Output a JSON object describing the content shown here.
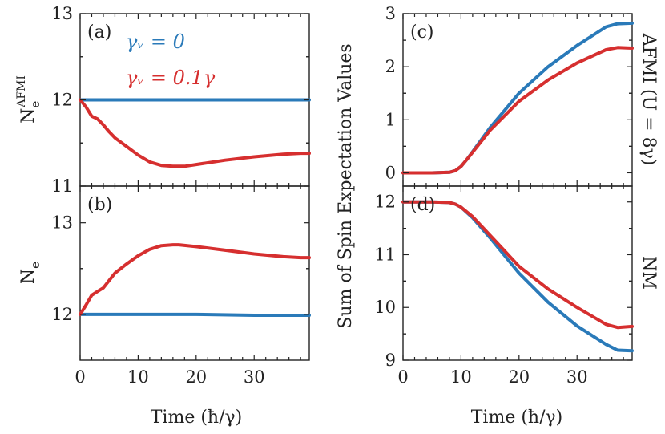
{
  "colors": {
    "blue": "#2a7ab9",
    "red": "#d62f2f"
  },
  "legend": {
    "blue_label": "γᵥ = 0",
    "red_label": "γᵥ = 0.1γ"
  },
  "shared": {
    "xlabel": "Time (ħ/γ)",
    "ylabel_right": "Sum of Spin Expectation Values"
  },
  "chart_data": [
    {
      "type": "line",
      "panel": "(a)",
      "ylabel": "N_e^AFMI",
      "xlim": [
        0,
        39.5
      ],
      "ylim": [
        11,
        13
      ],
      "xticks": [
        0,
        10,
        20,
        30
      ],
      "yticks": [
        11,
        12,
        13
      ],
      "series": [
        {
          "name": "γv = 0",
          "color": "blue",
          "x": [
            0,
            10,
            20,
            30,
            39.5
          ],
          "y": [
            12.0,
            12.0,
            12.0,
            12.0,
            12.0
          ]
        },
        {
          "name": "γv = 0.1γ",
          "color": "red",
          "x": [
            0,
            1,
            2,
            3,
            4,
            5,
            6,
            8,
            10,
            12,
            14,
            16,
            18,
            20,
            25,
            30,
            35,
            38,
            39.5
          ],
          "y": [
            12.0,
            11.92,
            11.81,
            11.78,
            11.71,
            11.63,
            11.56,
            11.46,
            11.36,
            11.28,
            11.24,
            11.23,
            11.23,
            11.25,
            11.3,
            11.34,
            11.37,
            11.38,
            11.38
          ]
        }
      ]
    },
    {
      "type": "line",
      "panel": "(b)",
      "ylabel": "N_e",
      "xlim": [
        0,
        39.5
      ],
      "ylim": [
        11.5,
        13.4
      ],
      "xticks": [
        0,
        10,
        20,
        30
      ],
      "xticklabels": [
        "0",
        "10",
        "20",
        "30"
      ],
      "yticks": [
        12,
        13
      ],
      "xlabel": "Time (ħ/γ)",
      "series": [
        {
          "name": "γv = 0",
          "color": "blue",
          "x": [
            0,
            10,
            20,
            30,
            39.5
          ],
          "y": [
            12.0,
            12.0,
            12.0,
            11.99,
            11.99
          ]
        },
        {
          "name": "γv = 0.1γ",
          "color": "red",
          "x": [
            0,
            1,
            2,
            3,
            4,
            5,
            6,
            8,
            10,
            12,
            14,
            16,
            17,
            20,
            25,
            30,
            35,
            38,
            39.5
          ],
          "y": [
            12.0,
            12.1,
            12.21,
            12.25,
            12.29,
            12.37,
            12.45,
            12.55,
            12.64,
            12.71,
            12.75,
            12.76,
            12.76,
            12.74,
            12.7,
            12.66,
            12.63,
            12.62,
            12.62
          ]
        }
      ]
    },
    {
      "type": "line",
      "panel": "(c)",
      "ylabel_right": "AFMI (U = 8γ)",
      "xlim": [
        0,
        39.5
      ],
      "ylim": [
        -0.25,
        3
      ],
      "xticks": [
        0,
        10,
        20,
        30
      ],
      "yticks": [
        0,
        1,
        2,
        3
      ],
      "series": [
        {
          "name": "γv = 0",
          "color": "blue",
          "x": [
            0,
            5,
            8,
            9,
            10,
            11,
            12,
            15,
            20,
            25,
            30,
            35,
            37,
            39.5
          ],
          "y": [
            0.0,
            0.0,
            0.01,
            0.04,
            0.12,
            0.25,
            0.4,
            0.85,
            1.5,
            2.0,
            2.4,
            2.75,
            2.81,
            2.82
          ]
        },
        {
          "name": "γv = 0.1γ",
          "color": "red",
          "x": [
            0,
            5,
            8,
            9,
            10,
            11,
            12,
            15,
            20,
            25,
            30,
            35,
            37,
            39.5
          ],
          "y": [
            0.0,
            0.0,
            0.01,
            0.04,
            0.12,
            0.25,
            0.39,
            0.8,
            1.35,
            1.75,
            2.07,
            2.32,
            2.36,
            2.35
          ]
        }
      ]
    },
    {
      "type": "line",
      "panel": "(d)",
      "ylabel_right": "NM",
      "xlim": [
        0,
        39.5
      ],
      "ylim": [
        9,
        12.3
      ],
      "xticks": [
        0,
        10,
        20,
        30
      ],
      "xticklabels": [
        "0",
        "10",
        "20",
        "30"
      ],
      "yticks": [
        9,
        10,
        11,
        12
      ],
      "xlabel": "Time (ħ/γ)",
      "series": [
        {
          "name": "γv = 0",
          "color": "blue",
          "x": [
            0,
            5,
            8,
            9,
            10,
            12,
            15,
            20,
            25,
            30,
            35,
            37,
            39.5
          ],
          "y": [
            12.0,
            12.0,
            11.99,
            11.96,
            11.9,
            11.7,
            11.32,
            10.65,
            10.1,
            9.65,
            9.3,
            9.19,
            9.18
          ]
        },
        {
          "name": "γv = 0.1γ",
          "color": "red",
          "x": [
            0,
            5,
            8,
            9,
            10,
            12,
            15,
            20,
            25,
            30,
            35,
            37,
            39.5
          ],
          "y": [
            12.0,
            12.0,
            11.99,
            11.96,
            11.9,
            11.72,
            11.37,
            10.78,
            10.35,
            10.0,
            9.68,
            9.62,
            9.64
          ]
        }
      ]
    }
  ]
}
